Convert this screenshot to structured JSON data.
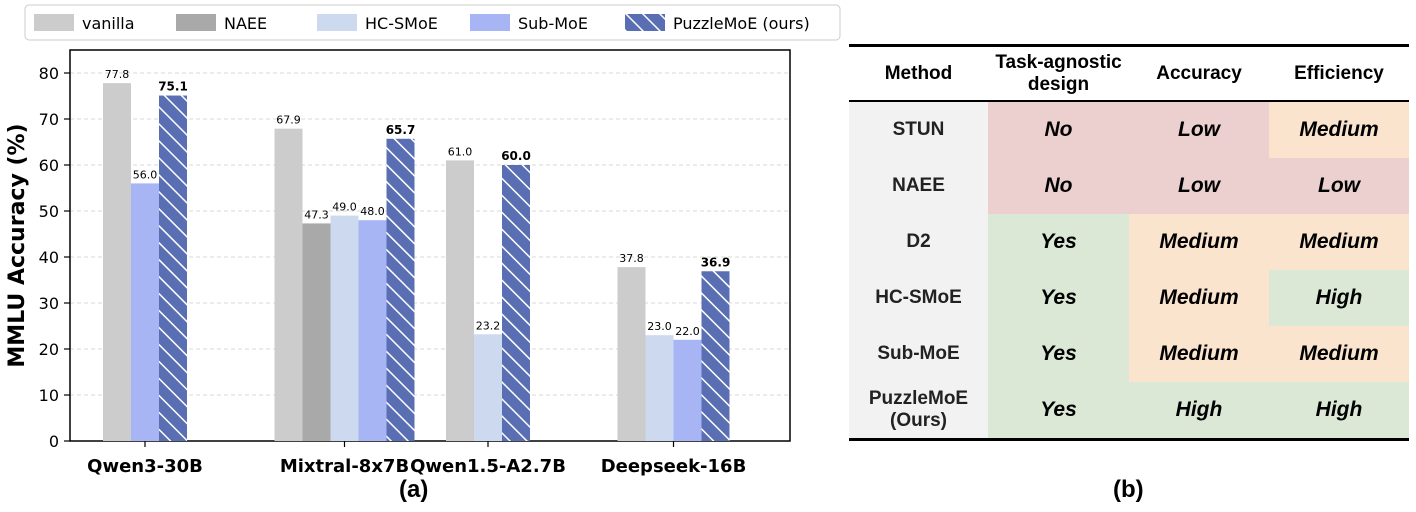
{
  "panel_a_caption": "(a)",
  "panel_b_caption": "(b)",
  "chart_data": {
    "type": "bar",
    "ylabel": "MMLU Accuracy (%)",
    "ylim": [
      0,
      85
    ],
    "yticks": [
      0,
      10,
      20,
      30,
      40,
      50,
      60,
      70,
      80
    ],
    "grid": true,
    "legend_position": "top",
    "categories": [
      "Qwen3-30B",
      "Mixtral-8x7B",
      "Qwen1.5-A2.7B",
      "Deepseek-16B"
    ],
    "series": [
      {
        "name": "vanilla",
        "color": "#cccccc",
        "hatch": false,
        "bold_labels": false,
        "values": [
          77.8,
          67.9,
          61.0,
          37.8
        ]
      },
      {
        "name": "NAEE",
        "color": "#a9a9a9",
        "hatch": false,
        "bold_labels": false,
        "values": [
          null,
          47.3,
          null,
          null
        ]
      },
      {
        "name": "HC-SMoE",
        "color": "#cdd9ee",
        "hatch": false,
        "bold_labels": false,
        "values": [
          null,
          49.0,
          23.2,
          23.0
        ]
      },
      {
        "name": "Sub-MoE",
        "color": "#a7b5f5",
        "hatch": false,
        "bold_labels": false,
        "values": [
          56.0,
          48.0,
          null,
          22.0
        ]
      },
      {
        "name": "PuzzleMoE (ours)",
        "color": "#5a6fb3",
        "hatch": true,
        "bold_labels": true,
        "values": [
          75.1,
          65.7,
          60.0,
          36.9
        ]
      }
    ]
  },
  "table": {
    "headers": [
      "Method",
      "Task-agnostic design",
      "Accuracy",
      "Efficiency"
    ],
    "rows": [
      {
        "method": "STUN",
        "cells": [
          "No",
          "Low",
          "Medium"
        ],
        "levels": [
          "neg",
          "neg",
          "mid"
        ]
      },
      {
        "method": "NAEE",
        "cells": [
          "No",
          "Low",
          "Low"
        ],
        "levels": [
          "neg",
          "neg",
          "neg"
        ]
      },
      {
        "method": "D2",
        "cells": [
          "Yes",
          "Medium",
          "Medium"
        ],
        "levels": [
          "pos",
          "mid",
          "mid"
        ]
      },
      {
        "method": "HC-SMoE",
        "cells": [
          "Yes",
          "Medium",
          "High"
        ],
        "levels": [
          "pos",
          "mid",
          "pos"
        ]
      },
      {
        "method": "Sub-MoE",
        "cells": [
          "Yes",
          "Medium",
          "Medium"
        ],
        "levels": [
          "pos",
          "mid",
          "mid"
        ]
      },
      {
        "method": "PuzzleMoE (Ours)",
        "cells": [
          "Yes",
          "High",
          "High"
        ],
        "levels": [
          "pos",
          "pos",
          "pos"
        ]
      }
    ]
  }
}
